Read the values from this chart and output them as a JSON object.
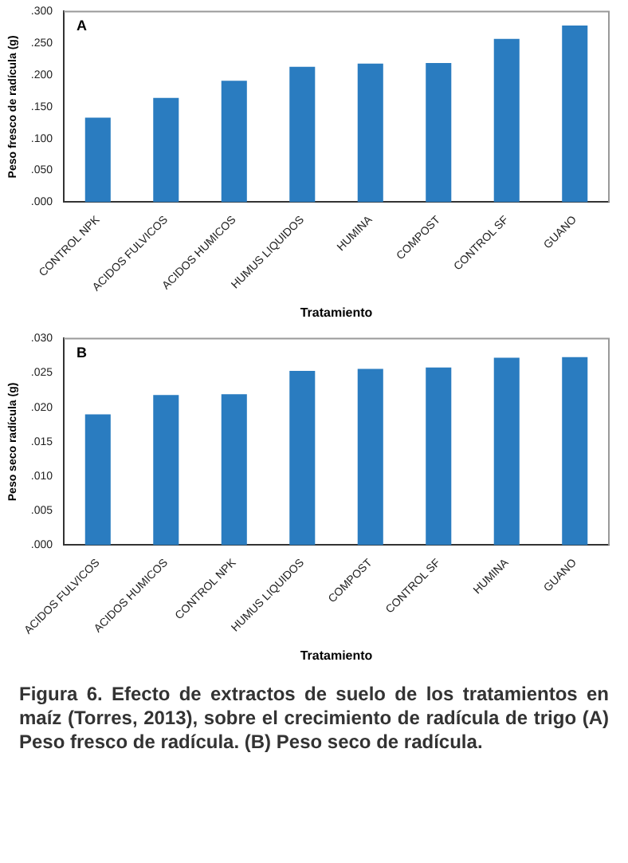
{
  "chart_data": [
    {
      "type": "bar",
      "xlabel": "Tratamiento",
      "ylabel": "Peso fresco de radícula (g)",
      "categories": [
        "CONTROL NPK",
        "ACIDOS FULVICOS",
        "ACIDOS HUMICOS",
        "HUMUS LIQUIDOS",
        "HUMINA",
        "COMPOST",
        "CONTROL SF",
        "GUANO"
      ],
      "values": [
        0.133,
        0.164,
        0.191,
        0.213,
        0.218,
        0.219,
        0.257,
        0.278
      ],
      "color": "#2a7cc0",
      "ylim": [
        0,
        0.3
      ],
      "yticks": [
        {
          "value": 0,
          "label": ".000"
        },
        {
          "value": 0.05,
          "label": ".050"
        },
        {
          "value": 0.1,
          "label": ".100"
        },
        {
          "value": 0.15,
          "label": ".150"
        },
        {
          "value": 0.2,
          "label": ".200"
        },
        {
          "value": 0.25,
          "label": ".250"
        },
        {
          "value": 0.3,
          "label": ".300"
        }
      ],
      "grid": false,
      "legend": false,
      "annotations": [
        "A"
      ]
    },
    {
      "type": "bar",
      "xlabel": "Tratamiento",
      "ylabel": "Peso seco radícula (g)",
      "categories": [
        "ACIDOS FULVICOS",
        "ACIDOS HUMICOS",
        "CONTROL NPK",
        "HUMUS LIQUIDOS",
        "COMPOST",
        "CONTROL SF",
        "HUMINA",
        "GUANO"
      ],
      "values": [
        0.019,
        0.0218,
        0.0219,
        0.0253,
        0.0256,
        0.0258,
        0.0272,
        0.0273
      ],
      "color": "#2a7cc0",
      "ylim": [
        0,
        0.03
      ],
      "yticks": [
        {
          "value": 0,
          "label": ".000"
        },
        {
          "value": 0.005,
          "label": ".005"
        },
        {
          "value": 0.01,
          "label": ".010"
        },
        {
          "value": 0.015,
          "label": ".015"
        },
        {
          "value": 0.02,
          "label": ".020"
        },
        {
          "value": 0.025,
          "label": ".025"
        },
        {
          "value": 0.03,
          "label": ".030"
        }
      ],
      "grid": false,
      "legend": false,
      "annotations": [
        "B",
        "Figura 6. Efecto de extractos de suelo de los tratamientos en maíz (Torres, 2013), sobre el crecimiento de radícula de trigo (A) Peso fresco de radícula. (B) Peso seco de radícula."
      ]
    }
  ]
}
